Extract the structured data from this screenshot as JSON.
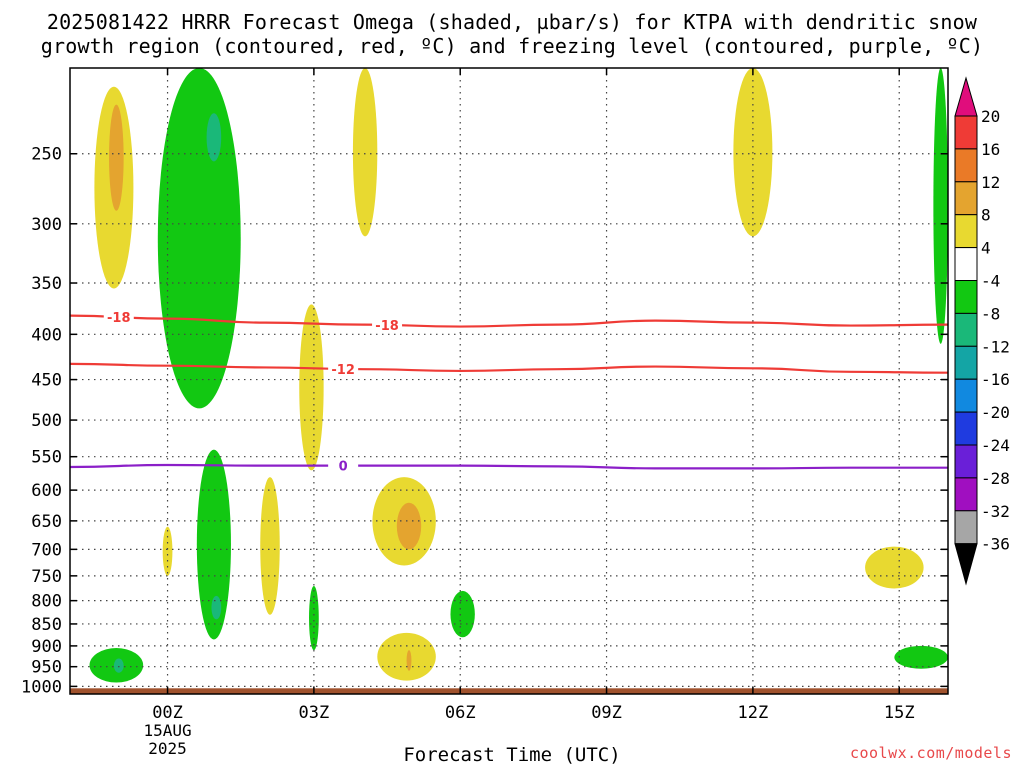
{
  "title_line1": "2025081422 HRRR Forecast Omega (shaded, µbar/s) for KTPA with dendritic snow",
  "title_line2": "growth region (contoured, red, ºC) and freezing level (contoured, purple, ºC)",
  "x_axis_label": "Forecast Time (UTC)",
  "x_date_label": [
    "15AUG",
    "2025"
  ],
  "credit": "coolwx.com/models",
  "chart_data": {
    "type": "heatmap",
    "title": "2025081422 HRRR Forecast Omega (shaded, µbar/s) for KTPA with dendritic snow growth region (contoured, red, ºC) and freezing level (contoured, purple, ºC)",
    "xlabel": "Forecast Time (UTC)",
    "ylabel": "",
    "x_ticks": [
      {
        "hour": 0,
        "label": "00Z"
      },
      {
        "hour": 3,
        "label": "03Z"
      },
      {
        "hour": 6,
        "label": "06Z"
      },
      {
        "hour": 9,
        "label": "09Z"
      },
      {
        "hour": 12,
        "label": "12Z"
      },
      {
        "hour": 15,
        "label": "15Z"
      }
    ],
    "xlim": [
      -2,
      16
    ],
    "y_ticks": [
      250,
      300,
      350,
      400,
      450,
      500,
      550,
      600,
      650,
      700,
      750,
      800,
      850,
      900,
      950,
      1000
    ],
    "ylim_hPa": [
      1020,
      200
    ],
    "y_scale": "log-pressure",
    "grid": true,
    "colorbar": {
      "label_values": [
        20,
        16,
        12,
        8,
        4,
        -4,
        -8,
        -12,
        -16,
        -20,
        -24,
        -28,
        -32,
        -36
      ],
      "colors": [
        "#e00d7c",
        "#ef3b36",
        "#ea7a27",
        "#e4a42f",
        "#e8d930",
        "#ffffff",
        "#12c812",
        "#1ab879",
        "#14a5a5",
        "#1189e0",
        "#1f3be0",
        "#6a1fd8",
        "#a00fc0",
        "#a6a6a6",
        "#000000"
      ]
    },
    "omega_regions": [
      {
        "level": 4,
        "hour_range": [
          -1.5,
          -0.7
        ],
        "p_range": [
          210,
          355
        ]
      },
      {
        "level": 8,
        "hour_range": [
          -1.2,
          -0.9
        ],
        "p_range": [
          220,
          290
        ]
      },
      {
        "level": -4,
        "hour_range": [
          -0.2,
          1.5
        ],
        "p_range": [
          200,
          485
        ]
      },
      {
        "level": -8,
        "hour_range": [
          0.8,
          1.1
        ],
        "p_range": [
          225,
          255
        ]
      },
      {
        "level": 4,
        "hour_range": [
          3.8,
          4.3
        ],
        "p_range": [
          200,
          310
        ]
      },
      {
        "level": 4,
        "hour_range": [
          11.6,
          12.4
        ],
        "p_range": [
          200,
          310
        ]
      },
      {
        "level": -4,
        "hour_range": [
          15.7,
          16
        ],
        "p_range": [
          200,
          410
        ]
      },
      {
        "level": 4,
        "hour_range": [
          2.7,
          3.2
        ],
        "p_range": [
          370,
          570
        ]
      },
      {
        "level": -4,
        "hour_range": [
          0.6,
          1.3
        ],
        "p_range": [
          540,
          885
        ]
      },
      {
        "level": -8,
        "hour_range": [
          0.9,
          1.1
        ],
        "p_range": [
          790,
          840
        ]
      },
      {
        "level": 4,
        "hour_range": [
          -0.1,
          0.1
        ],
        "p_range": [
          660,
          750
        ]
      },
      {
        "level": 4,
        "hour_range": [
          1.9,
          2.3
        ],
        "p_range": [
          580,
          830
        ]
      },
      {
        "level": 4,
        "hour_range": [
          4.2,
          5.5
        ],
        "p_range": [
          580,
          730
        ]
      },
      {
        "level": 8,
        "hour_range": [
          4.7,
          5.2
        ],
        "p_range": [
          620,
          700
        ]
      },
      {
        "level": -4,
        "hour_range": [
          2.9,
          3.1
        ],
        "p_range": [
          770,
          910
        ]
      },
      {
        "level": -4,
        "hour_range": [
          5.8,
          6.3
        ],
        "p_range": [
          780,
          880
        ]
      },
      {
        "level": 4,
        "hour_range": [
          4.3,
          5.5
        ],
        "p_range": [
          870,
          985
        ]
      },
      {
        "level": 8,
        "hour_range": [
          4.9,
          5.0
        ],
        "p_range": [
          910,
          960
        ]
      },
      {
        "level": -4,
        "hour_range": [
          -1.6,
          -0.5
        ],
        "p_range": [
          905,
          990
        ]
      },
      {
        "level": -8,
        "hour_range": [
          -1.1,
          -0.9
        ],
        "p_range": [
          930,
          965
        ]
      },
      {
        "level": 4,
        "hour_range": [
          14.3,
          15.5
        ],
        "p_range": [
          695,
          775
        ]
      },
      {
        "level": -4,
        "hour_range": [
          14.9,
          16
        ],
        "p_range": [
          900,
          955
        ]
      }
    ],
    "contours": [
      {
        "label": "-18",
        "color": "#ef3b36",
        "hours": [
          -2,
          0,
          2,
          4,
          6,
          8,
          10,
          12,
          14,
          16
        ],
        "pressure": [
          381,
          384,
          388,
          390,
          392,
          390,
          386,
          388,
          391,
          390
        ]
      },
      {
        "label": "-12",
        "color": "#ef3b36",
        "hours": [
          -2,
          0,
          2,
          4,
          6,
          8,
          10,
          12,
          14,
          16
        ],
        "pressure": [
          432,
          434,
          436,
          438,
          440,
          438,
          435,
          437,
          441,
          442
        ]
      },
      {
        "label": "0",
        "color": "#8b1fc8",
        "hours": [
          -2,
          0,
          2,
          4,
          6,
          8,
          10,
          12,
          14,
          16
        ],
        "pressure": [
          565,
          562,
          563,
          563,
          563,
          564,
          567,
          567,
          566,
          566
        ]
      }
    ]
  }
}
